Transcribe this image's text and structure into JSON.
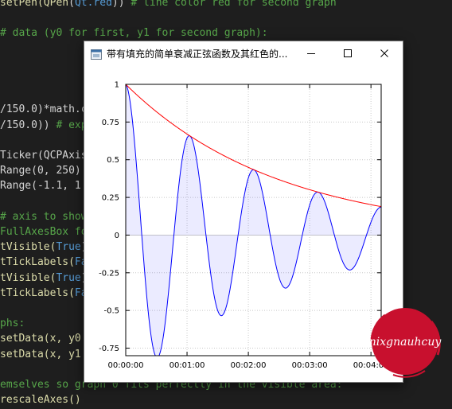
{
  "editor": {
    "lines": [
      [
        {
          "t": "setPen(",
          "c": "tok-call"
        },
        {
          "t": "QPen",
          "c": "tok-call"
        },
        {
          "t": "(",
          "c": "tok-plain"
        },
        {
          "t": "Qt.red",
          "c": "tok-const"
        },
        {
          "t": ")) ",
          "c": "tok-plain"
        },
        {
          "t": "# line color red for second graph",
          "c": "tok-comment"
        }
      ],
      [],
      [
        {
          "t": "# data (y0 for first, y1 for second graph):",
          "c": "tok-comment"
        }
      ],
      [],
      [],
      [],
      [],
      [
        {
          "t": "/150.0)*math.c",
          "c": "tok-plain"
        }
      ],
      [
        {
          "t": "/150.0)) ",
          "c": "tok-plain"
        },
        {
          "t": "# exp",
          "c": "tok-comment"
        }
      ],
      [],
      [
        {
          "t": "Ticker(QCPAxis",
          "c": "tok-plain"
        }
      ],
      [
        {
          "t": "Range(0, 250)",
          "c": "tok-plain"
        }
      ],
      [
        {
          "t": "Range(-1.1, 1",
          "c": "tok-plain"
        }
      ],
      [],
      [
        {
          "t": "# axis to show",
          "c": "tok-comment"
        }
      ],
      [
        {
          "t": "FullAxesBox fo",
          "c": "tok-comment"
        }
      ],
      [
        {
          "t": "tVisible(",
          "c": "tok-call"
        },
        {
          "t": "True",
          "c": "tok-const"
        },
        {
          "t": ")",
          "c": "tok-plain"
        }
      ],
      [
        {
          "t": "tTickLabels(",
          "c": "tok-call"
        },
        {
          "t": "Fa",
          "c": "tok-const"
        }
      ],
      [
        {
          "t": "tVisible(",
          "c": "tok-call"
        },
        {
          "t": "True",
          "c": "tok-const"
        },
        {
          "t": ")",
          "c": "tok-plain"
        }
      ],
      [
        {
          "t": "tTickLabels(",
          "c": "tok-call"
        },
        {
          "t": "Fa",
          "c": "tok-const"
        }
      ],
      [],
      [
        {
          "t": "phs:",
          "c": "tok-comment"
        }
      ],
      [
        {
          "t": "setData(x, y0",
          "c": "tok-call"
        }
      ],
      [
        {
          "t": "setData(x, y1",
          "c": "tok-call"
        }
      ],
      [],
      [
        {
          "t": "emselves so graph 0 fits perfectly in the visible area:",
          "c": "tok-comment"
        }
      ],
      [
        {
          "t": "rescaleAxes()",
          "c": "tok-call"
        }
      ]
    ]
  },
  "window": {
    "title": "带有填充的简单衰减正弦函数及其红色的...",
    "icons": {
      "app": "app-window-icon",
      "minimize": "minimize-icon",
      "maximize": "maximize-icon",
      "close": "close-icon"
    }
  },
  "watermark": {
    "text": "nixgnauhcuy",
    "color": "#c8102e"
  },
  "chart_data": {
    "type": "line",
    "x_unit": "seconds",
    "xlim": [
      0,
      250
    ],
    "ylim": [
      -0.8,
      1.0
    ],
    "xticks": [
      0,
      60,
      120,
      180,
      240
    ],
    "xtick_labels": [
      "00:00:00",
      "00:01:00",
      "00:02:00",
      "00:03:00",
      "00:04:00"
    ],
    "yticks": [
      1,
      0.75,
      0.5,
      0.25,
      0,
      -0.25,
      -0.5,
      -0.75
    ],
    "ytick_labels": [
      "1",
      "0.75",
      "0.5",
      "0.25",
      "0",
      "-0.25",
      "-0.5",
      "-0.75"
    ],
    "grid": true,
    "legend": false,
    "series": [
      {
        "kind": "damped-cosine",
        "formula": "y0 = exp(-x/150) * cos(x/10)",
        "color": "#0000ff",
        "fill": "#0000ff",
        "fill_alpha": 0.08,
        "fill_baseline": 0
      },
      {
        "kind": "exponential-envelope",
        "formula": "y1 = exp(-x/150)",
        "color": "#ff0000"
      }
    ]
  }
}
